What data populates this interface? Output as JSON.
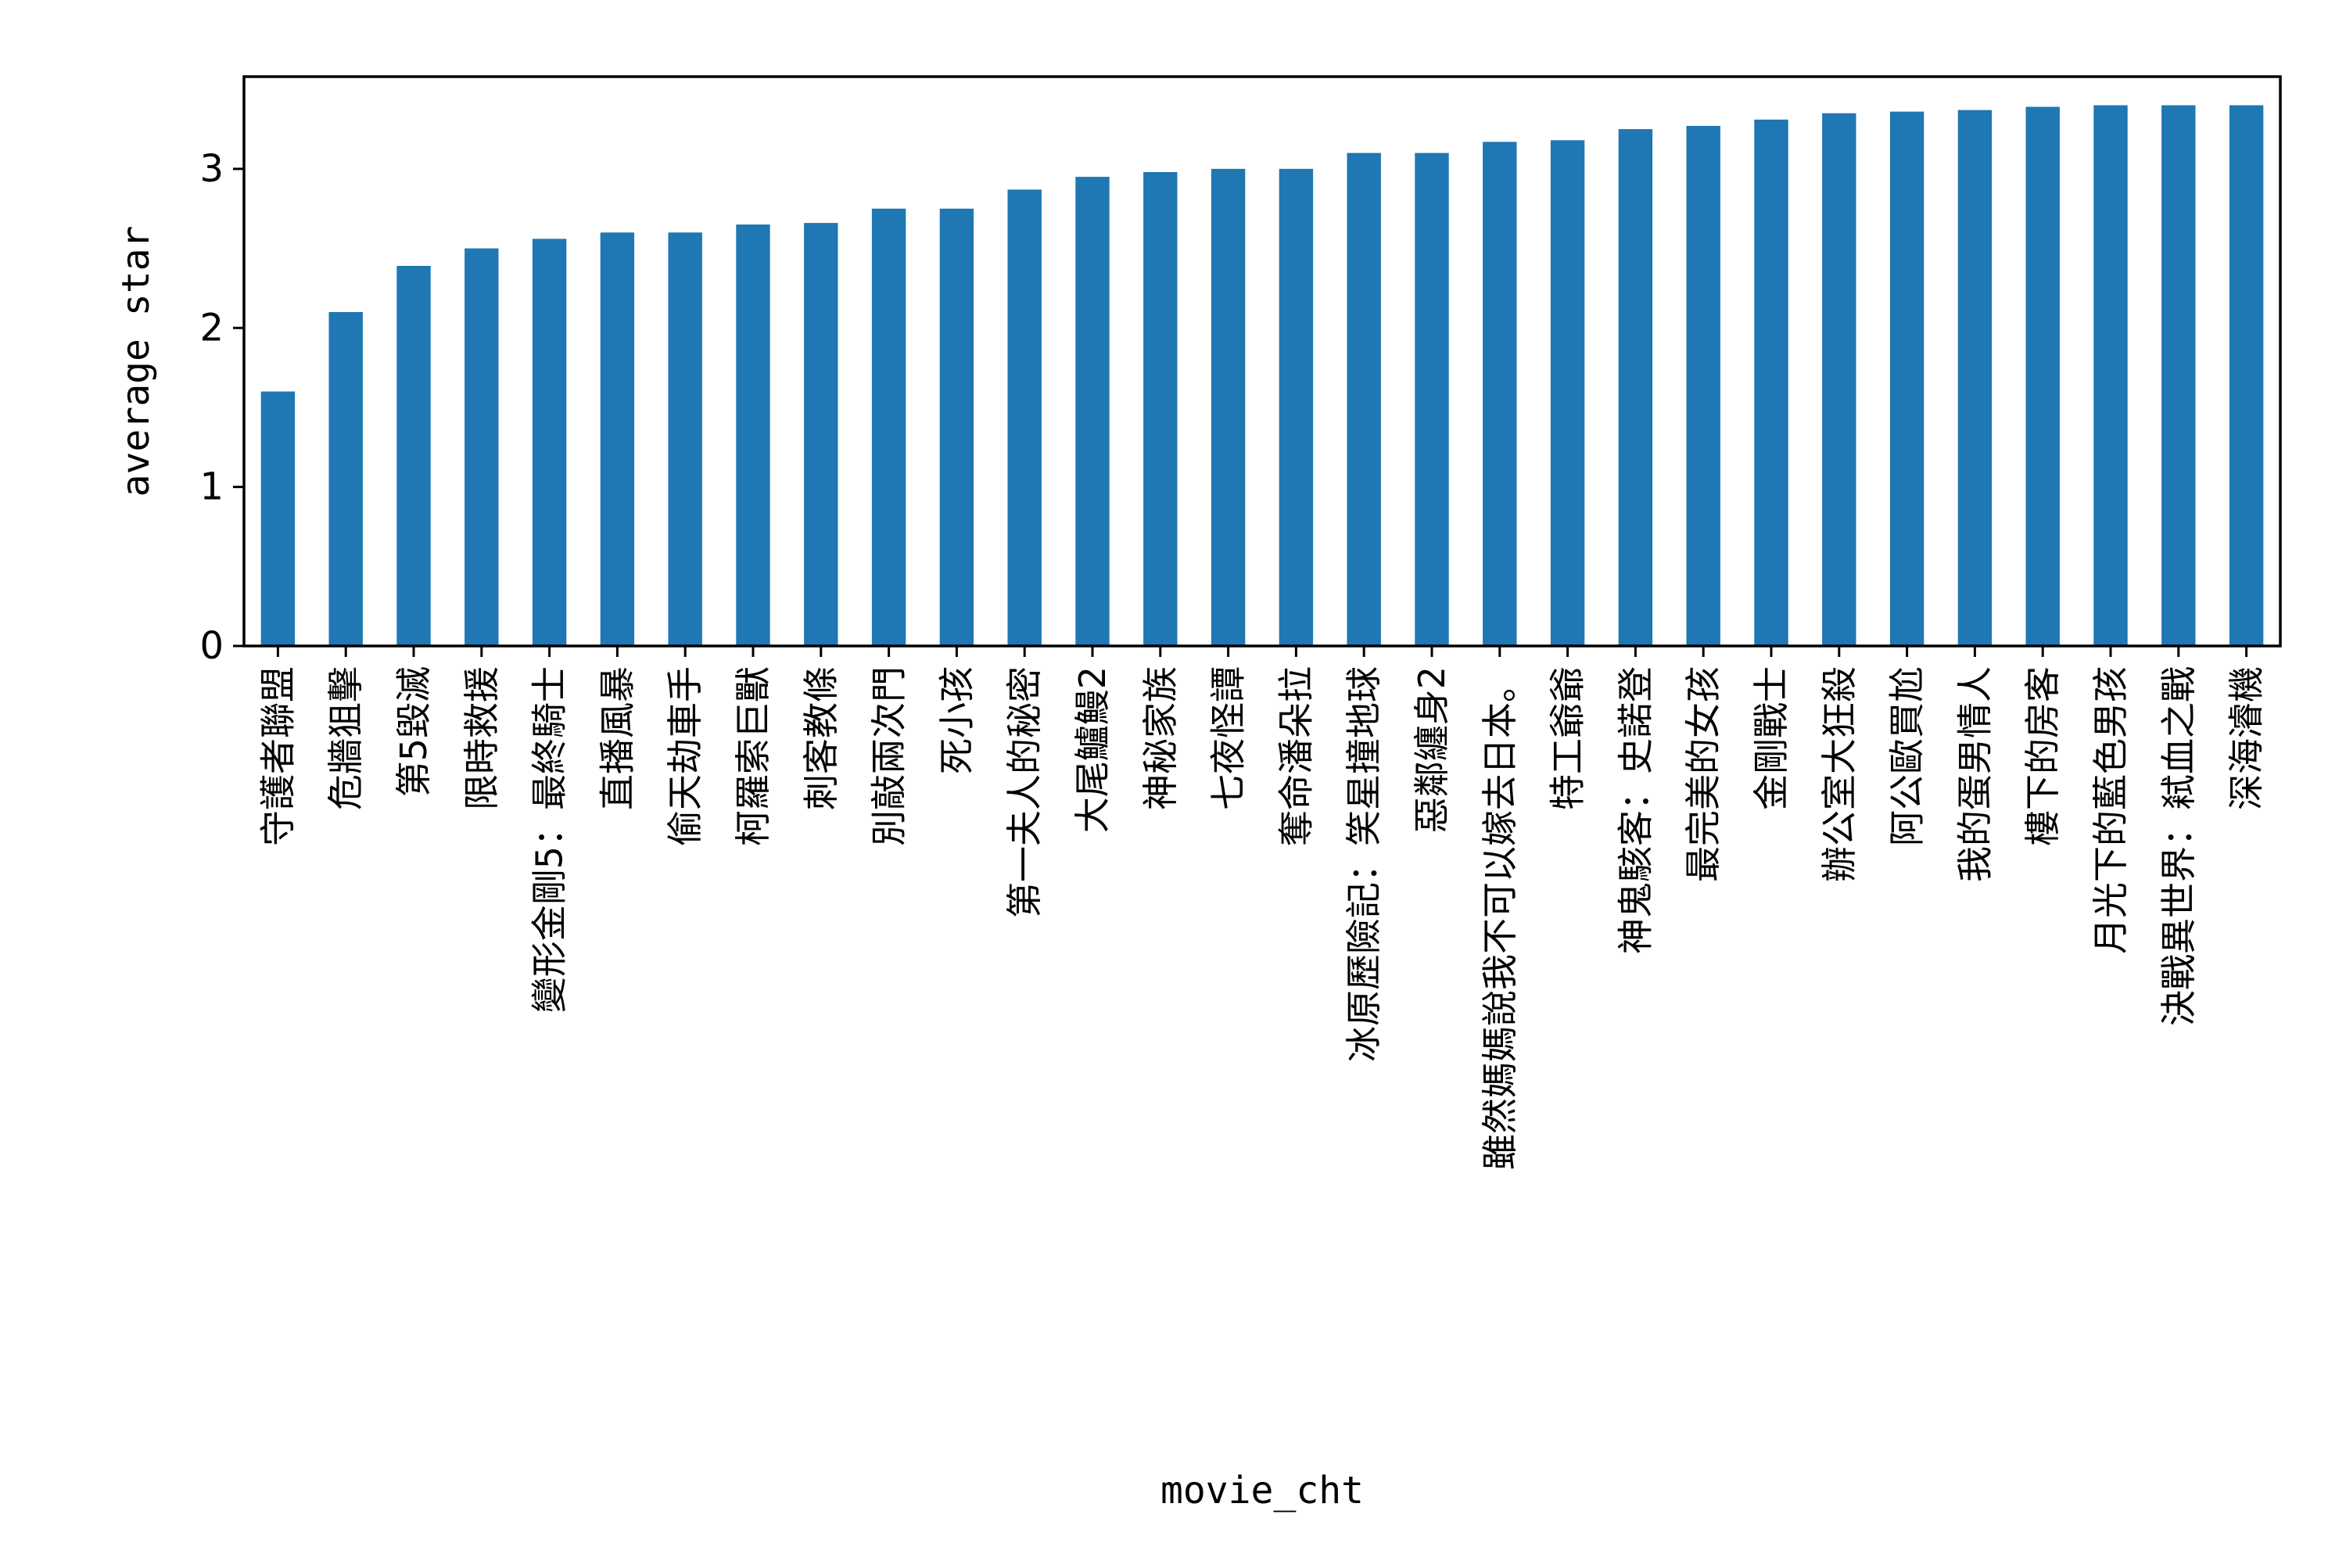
{
  "chart_data": {
    "type": "bar",
    "xlabel": "movie_cht",
    "ylabel": "average star",
    "ylim": [
      0,
      3.58
    ],
    "yticks": [
      0,
      1,
      2,
      3
    ],
    "grid": false,
    "legend": "none",
    "bar_color": "#1f77b4",
    "categories": [
      "守護者聯盟",
      "危牆狙擊",
      "第5毀滅",
      "限時救援",
      "變形金剛5：最終騎士",
      "直播風暴",
      "偷天劫車手",
      "柯羅索巨獸",
      "刺客教條",
      "別敲兩次門",
      "死小孩",
      "第一夫人的秘密",
      "大尾鱸鰻2",
      "神秘家族",
      "七夜怪譚",
      "奪命潘朵拉",
      "冰原歷險記：笑星撞地球",
      "惡鄰纏身2",
      "雖然媽媽說我不可以嫁去日本。",
      "特工爺爺",
      "神鬼駭客：史諾登",
      "最完美的女孩",
      "金剛戰士",
      "辦公室大狂殺",
      "阿公歐買尬",
      "我的蛋男情人",
      "樓下的房客",
      "月光下的藍色男孩",
      "決戰異世界：弒血之戰",
      "深海濬機"
    ],
    "values": [
      1.6,
      2.1,
      2.39,
      2.5,
      2.56,
      2.6,
      2.6,
      2.65,
      2.66,
      2.75,
      2.75,
      2.87,
      2.95,
      2.98,
      3.0,
      3.0,
      3.1,
      3.1,
      3.17,
      3.18,
      3.25,
      3.27,
      3.31,
      3.35,
      3.36,
      3.37,
      3.39,
      3.4,
      3.4,
      3.4
    ]
  }
}
